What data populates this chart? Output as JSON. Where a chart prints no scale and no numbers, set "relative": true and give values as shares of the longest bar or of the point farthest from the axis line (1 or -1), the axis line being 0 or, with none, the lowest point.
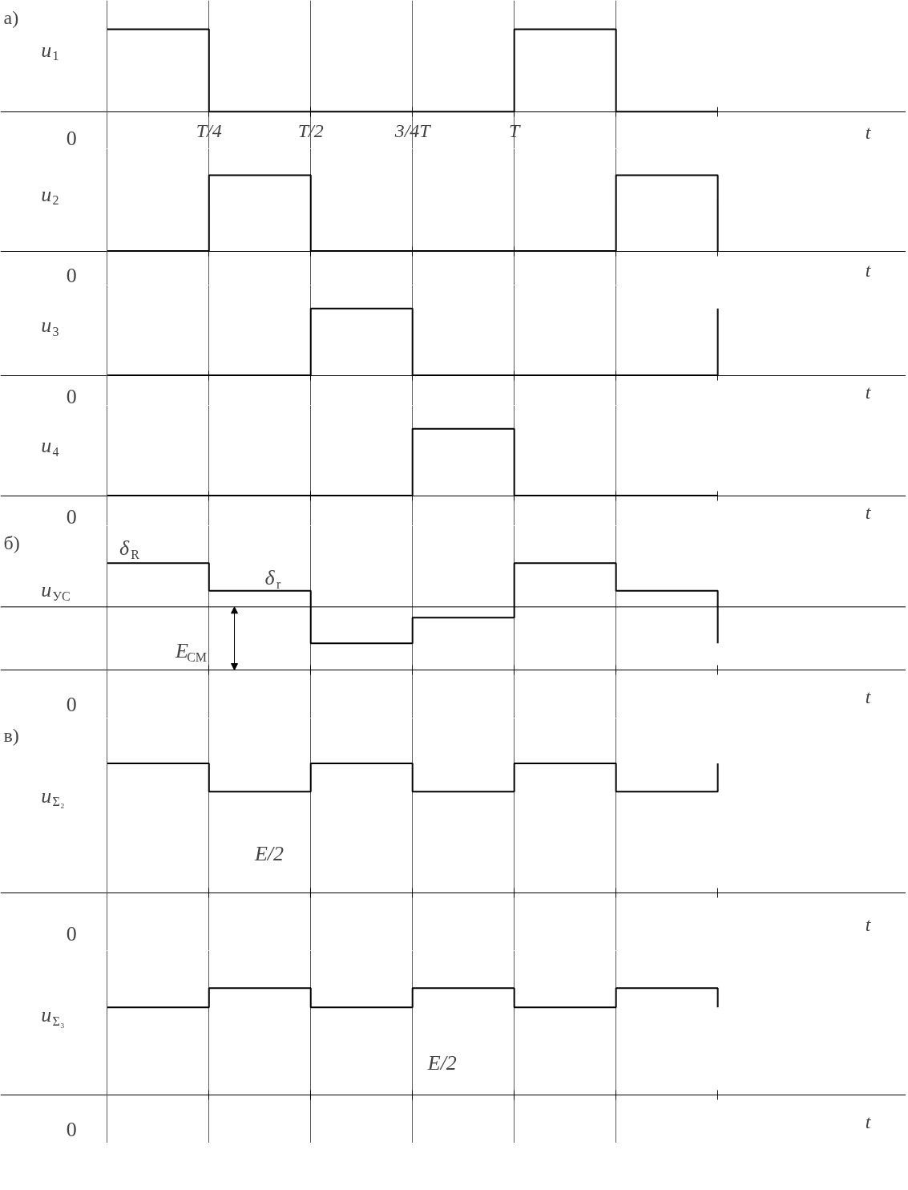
{
  "chart_data": [
    {
      "type": "step",
      "relative": true,
      "ylabel": "u$_{1}$",
      "xlabel": "t",
      "categories": [
        null,
        "T/4",
        "T/2",
        "3/4T",
        "T",
        null,
        null
      ],
      "tick_labels": "x",
      "grid": "x",
      "series": [
        {
          "color": "#000000",
          "values": [
            1,
            0,
            0,
            0,
            1,
            0,
            0
          ]
        }
      ],
      "annotations": [
        "а)",
        "0"
      ]
    },
    {
      "type": "step",
      "relative": true,
      "ylabel": "u$_{2}$",
      "xlabel": "t",
      "categories": [
        null,
        null,
        null,
        null,
        null,
        null,
        null
      ],
      "tick_labels": false,
      "grid": "x",
      "series": [
        {
          "color": "#000000",
          "values": [
            0,
            1,
            0,
            0,
            0,
            1,
            0
          ]
        }
      ],
      "annotations": [
        "0"
      ]
    },
    {
      "type": "step",
      "relative": true,
      "ylabel": "u$_{3}$",
      "xlabel": "t",
      "categories": [
        null,
        null,
        null,
        null,
        null,
        null,
        null
      ],
      "tick_labels": false,
      "grid": "x",
      "series": [
        {
          "color": "#000000",
          "values": [
            0,
            0,
            1,
            0,
            0,
            0,
            1
          ]
        }
      ],
      "annotations": [
        "0"
      ]
    },
    {
      "type": "step",
      "relative": true,
      "ylabel": "u$_{4}$",
      "xlabel": "t",
      "categories": [
        null,
        null,
        null,
        null,
        null,
        null,
        null
      ],
      "tick_labels": false,
      "grid": "x",
      "series": [
        {
          "color": "#000000",
          "values": [
            0,
            0,
            0,
            1,
            0,
            0,
            0
          ]
        }
      ],
      "annotations": [
        "0"
      ]
    },
    {
      "type": "step",
      "relative": true,
      "ylabel": "u$_{УС}$",
      "xlabel": "t",
      "categories": [
        null,
        null,
        null,
        null,
        null,
        null,
        null
      ],
      "tick_labels": false,
      "grid": "x",
      "series": [
        {
          "color": "#000000",
          "values": [
            1,
            0.74,
            0.25,
            0.49,
            1,
            0.74,
            0.25
          ]
        }
      ],
      "ref_lines": [
        {
          "axis": "y",
          "value": 0.59,
          "label": "E$_{СМ}$",
          "color": "#000000"
        }
      ],
      "annotations": [
        "б)",
        "0",
        "δ$_{R}$",
        "δ$_{r}$"
      ]
    },
    {
      "type": "step",
      "relative": true,
      "ylabel": "u$_{Σ₂}$",
      "xlabel": "t",
      "categories": [
        null,
        null,
        null,
        null,
        null,
        null,
        null
      ],
      "tick_labels": false,
      "grid": "x",
      "series": [
        {
          "color": "#000000",
          "values": [
            1,
            0.78,
            1,
            0.78,
            1,
            0.78,
            1
          ]
        }
      ],
      "annotations": [
        "в)",
        "0",
        "E/2"
      ]
    },
    {
      "type": "step",
      "relative": true,
      "ylabel": "u$_{Σ₃}$",
      "xlabel": "t",
      "categories": [
        null,
        null,
        null,
        null,
        null,
        null,
        null
      ],
      "tick_labels": false,
      "grid": "x",
      "series": [
        {
          "color": "#000000",
          "values": [
            0.82,
            1,
            0.82,
            1,
            0.82,
            1,
            0.82
          ]
        }
      ],
      "annotations": [
        "0",
        "E/2"
      ]
    }
  ]
}
